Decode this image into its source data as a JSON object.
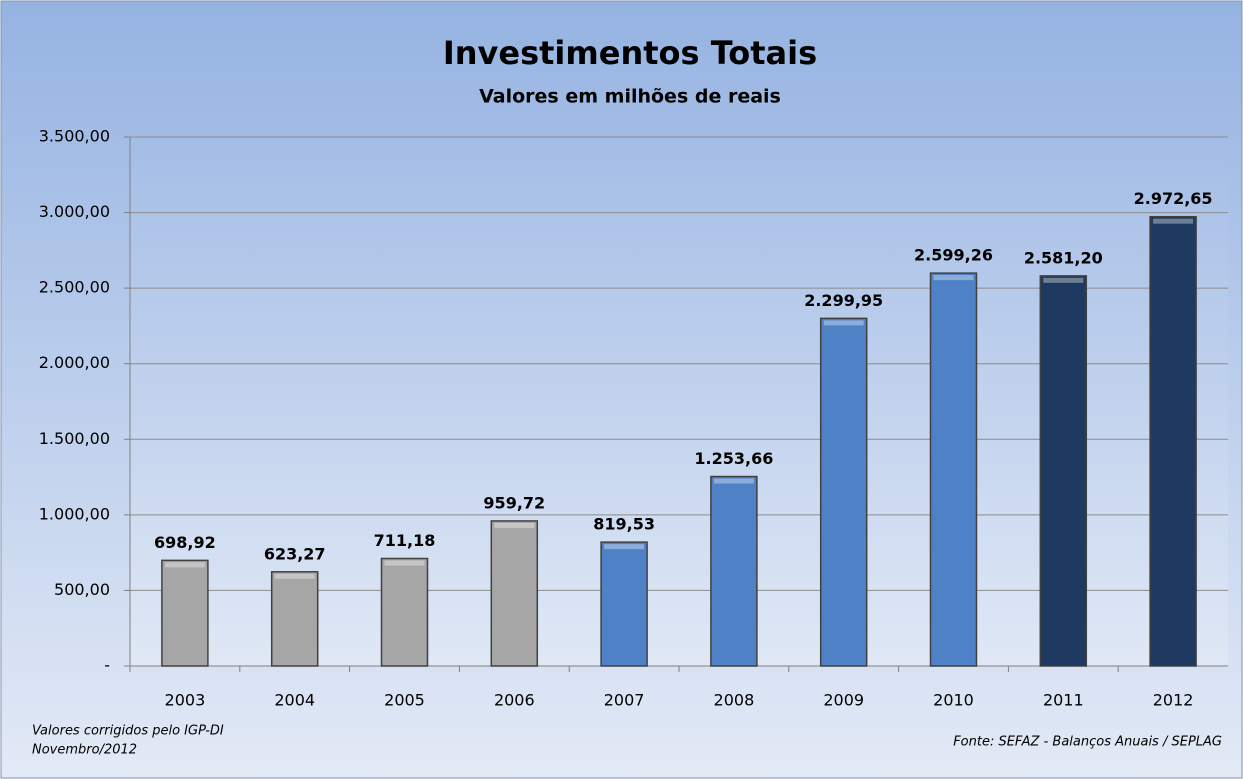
{
  "chart_data": {
    "type": "bar",
    "title": "Investimentos Totais",
    "subtitle": "Valores em milhões de reais",
    "categories": [
      "2003",
      "2004",
      "2005",
      "2006",
      "2007",
      "2008",
      "2009",
      "2010",
      "2011",
      "2012"
    ],
    "values": [
      698.92,
      623.27,
      711.18,
      959.72,
      819.53,
      1253.66,
      2299.95,
      2599.26,
      2581.2,
      2972.65
    ],
    "value_labels": [
      "698,92",
      "623,27",
      "711,18",
      "959,72",
      "819,53",
      "1.253,66",
      "2.299,95",
      "2.599,26",
      "2.581,20",
      "2.972,65"
    ],
    "colors": [
      "#a6a6a6",
      "#a6a6a6",
      "#a6a6a6",
      "#a6a6a6",
      "#4f81c7",
      "#4f81c7",
      "#4f81c7",
      "#4f81c7",
      "#1f3a60",
      "#1f3a60"
    ],
    "ylim": [
      0,
      3500
    ],
    "yticks": [
      {
        "value": 0,
        "label": "-"
      },
      {
        "value": 500,
        "label": "500,00"
      },
      {
        "value": 1000,
        "label": "1.000,00"
      },
      {
        "value": 1500,
        "label": "1.500,00"
      },
      {
        "value": 2000,
        "label": "2.000,00"
      },
      {
        "value": 2500,
        "label": "2.500,00"
      },
      {
        "value": 3000,
        "label": "3.000,00"
      },
      {
        "value": 3500,
        "label": "3.500,00"
      }
    ],
    "grid": true,
    "notes": [
      "Valores corrigidos pelo IGP-DI",
      "Novembro/2012"
    ],
    "source": "Fonte: SEFAZ - Balanços Anuais / SEPLAG"
  }
}
